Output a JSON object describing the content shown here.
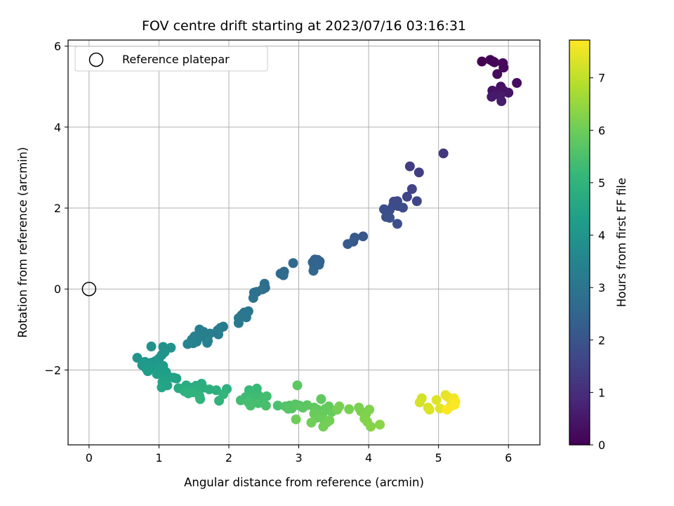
{
  "chart_data": {
    "type": "scatter",
    "title": "FOV centre drift starting at 2023/07/16 03:16:31",
    "xlabel": "Angular distance from reference (arcmin)",
    "ylabel": "Rotation from reference (arcmin)",
    "xlim": [
      -0.3,
      6.45
    ],
    "ylim": [
      -3.85,
      6.15
    ],
    "xticks": [
      0,
      1,
      2,
      3,
      4,
      5,
      6
    ],
    "xtick_labels": [
      "0",
      "1",
      "2",
      "3",
      "4",
      "5",
      "6"
    ],
    "yticks": [
      -2,
      0,
      2,
      4,
      6
    ],
    "ytick_labels": [
      "−2",
      "0",
      "2",
      "4",
      "6"
    ],
    "grid": true,
    "legend": {
      "location": "top-left",
      "entries": [
        "Reference platepar"
      ]
    },
    "reference_point": {
      "name": "Reference platepar",
      "x": 0,
      "y": 0
    },
    "colorbar": {
      "label": "Hours from first FF file",
      "colormap": "viridis",
      "range": [
        0,
        7.72
      ],
      "ticks": [
        0,
        1,
        2,
        3,
        4,
        5,
        6,
        7
      ],
      "tick_labels": [
        "0",
        "1",
        "2",
        "3",
        "4",
        "5",
        "6",
        "7"
      ]
    },
    "points": [
      {
        "x": 5.62,
        "y": 5.62,
        "h": 0.0
      },
      {
        "x": 5.74,
        "y": 5.66,
        "h": 0.04
      },
      {
        "x": 5.78,
        "y": 5.62,
        "h": 0.08
      },
      {
        "x": 5.8,
        "y": 5.6,
        "h": 0.12
      },
      {
        "x": 5.92,
        "y": 5.58,
        "h": 0.16
      },
      {
        "x": 5.93,
        "y": 5.47,
        "h": 0.2
      },
      {
        "x": 5.84,
        "y": 5.31,
        "h": 0.24
      },
      {
        "x": 6.12,
        "y": 5.09,
        "h": 0.28
      },
      {
        "x": 5.89,
        "y": 5.0,
        "h": 0.32
      },
      {
        "x": 5.77,
        "y": 4.9,
        "h": 0.36
      },
      {
        "x": 5.93,
        "y": 4.9,
        "h": 0.4
      },
      {
        "x": 6.0,
        "y": 4.85,
        "h": 0.44
      },
      {
        "x": 5.82,
        "y": 4.82,
        "h": 0.48
      },
      {
        "x": 5.76,
        "y": 4.75,
        "h": 0.52
      },
      {
        "x": 5.88,
        "y": 4.77,
        "h": 0.56
      },
      {
        "x": 5.9,
        "y": 4.64,
        "h": 0.6
      },
      {
        "x": 5.07,
        "y": 3.35,
        "h": 1.2
      },
      {
        "x": 4.59,
        "y": 3.03,
        "h": 1.35
      },
      {
        "x": 4.72,
        "y": 2.88,
        "h": 1.45
      },
      {
        "x": 4.62,
        "y": 2.47,
        "h": 1.55
      },
      {
        "x": 4.55,
        "y": 2.28,
        "h": 1.6
      },
      {
        "x": 4.69,
        "y": 2.17,
        "h": 1.65
      },
      {
        "x": 4.36,
        "y": 2.16,
        "h": 1.7
      },
      {
        "x": 4.41,
        "y": 2.17,
        "h": 1.72
      },
      {
        "x": 4.35,
        "y": 2.06,
        "h": 1.75
      },
      {
        "x": 4.42,
        "y": 2.05,
        "h": 1.78
      },
      {
        "x": 4.49,
        "y": 2.01,
        "h": 1.8
      },
      {
        "x": 4.22,
        "y": 1.97,
        "h": 1.82
      },
      {
        "x": 4.3,
        "y": 1.95,
        "h": 1.84
      },
      {
        "x": 4.25,
        "y": 1.78,
        "h": 1.86
      },
      {
        "x": 4.3,
        "y": 1.76,
        "h": 1.88
      },
      {
        "x": 4.41,
        "y": 1.61,
        "h": 1.9
      },
      {
        "x": 3.92,
        "y": 1.3,
        "h": 2.05
      },
      {
        "x": 3.8,
        "y": 1.27,
        "h": 2.1
      },
      {
        "x": 3.78,
        "y": 1.17,
        "h": 2.15
      },
      {
        "x": 3.7,
        "y": 1.11,
        "h": 2.2
      },
      {
        "x": 3.23,
        "y": 0.73,
        "h": 2.4
      },
      {
        "x": 3.27,
        "y": 0.72,
        "h": 2.42
      },
      {
        "x": 3.3,
        "y": 0.68,
        "h": 2.44
      },
      {
        "x": 3.2,
        "y": 0.66,
        "h": 2.46
      },
      {
        "x": 3.25,
        "y": 0.63,
        "h": 2.48
      },
      {
        "x": 3.29,
        "y": 0.6,
        "h": 2.5
      },
      {
        "x": 3.22,
        "y": 0.53,
        "h": 2.52
      },
      {
        "x": 3.21,
        "y": 0.45,
        "h": 2.54
      },
      {
        "x": 2.92,
        "y": 0.64,
        "h": 2.6
      },
      {
        "x": 2.79,
        "y": 0.43,
        "h": 2.65
      },
      {
        "x": 2.74,
        "y": 0.38,
        "h": 2.68
      },
      {
        "x": 2.78,
        "y": 0.34,
        "h": 2.7
      },
      {
        "x": 2.51,
        "y": 0.13,
        "h": 2.8
      },
      {
        "x": 2.52,
        "y": 0.03,
        "h": 2.82
      },
      {
        "x": 2.48,
        "y": -0.01,
        "h": 2.84
      },
      {
        "x": 2.4,
        "y": -0.07,
        "h": 2.86
      },
      {
        "x": 2.36,
        "y": -0.09,
        "h": 2.88
      },
      {
        "x": 2.35,
        "y": -0.22,
        "h": 2.9
      },
      {
        "x": 2.28,
        "y": -0.55,
        "h": 3.0
      },
      {
        "x": 2.22,
        "y": -0.58,
        "h": 3.02
      },
      {
        "x": 2.18,
        "y": -0.65,
        "h": 3.04
      },
      {
        "x": 2.25,
        "y": -0.7,
        "h": 3.06
      },
      {
        "x": 2.14,
        "y": -0.72,
        "h": 3.08
      },
      {
        "x": 2.14,
        "y": -0.84,
        "h": 3.1
      },
      {
        "x": 1.92,
        "y": -0.93,
        "h": 3.2
      },
      {
        "x": 1.88,
        "y": -0.96,
        "h": 3.22
      },
      {
        "x": 1.84,
        "y": -1.02,
        "h": 3.24
      },
      {
        "x": 1.85,
        "y": -1.12,
        "h": 3.26
      },
      {
        "x": 1.73,
        "y": -1.1,
        "h": 3.28
      },
      {
        "x": 1.64,
        "y": -1.06,
        "h": 3.3
      },
      {
        "x": 1.58,
        "y": -1.0,
        "h": 3.32
      },
      {
        "x": 1.63,
        "y": -1.18,
        "h": 3.34
      },
      {
        "x": 1.51,
        "y": -1.17,
        "h": 3.36
      },
      {
        "x": 1.47,
        "y": -1.25,
        "h": 3.38
      },
      {
        "x": 1.54,
        "y": -1.3,
        "h": 3.4
      },
      {
        "x": 1.7,
        "y": -1.28,
        "h": 3.42
      },
      {
        "x": 1.69,
        "y": -1.33,
        "h": 3.44
      },
      {
        "x": 1.49,
        "y": -1.34,
        "h": 3.46
      },
      {
        "x": 1.41,
        "y": -1.36,
        "h": 3.48
      },
      {
        "x": 1.06,
        "y": -1.43,
        "h": 3.9
      },
      {
        "x": 1.17,
        "y": -1.45,
        "h": 3.92
      },
      {
        "x": 0.89,
        "y": -1.42,
        "h": 3.94
      },
      {
        "x": 1.08,
        "y": -1.56,
        "h": 3.96
      },
      {
        "x": 1.04,
        "y": -1.63,
        "h": 3.98
      },
      {
        "x": 0.69,
        "y": -1.7,
        "h": 4.0
      },
      {
        "x": 1.0,
        "y": -1.72,
        "h": 4.02
      },
      {
        "x": 0.95,
        "y": -1.78,
        "h": 4.05
      },
      {
        "x": 0.89,
        "y": -1.82,
        "h": 4.08
      },
      {
        "x": 0.8,
        "y": -1.8,
        "h": 4.1
      },
      {
        "x": 0.85,
        "y": -1.86,
        "h": 4.12
      },
      {
        "x": 0.76,
        "y": -1.88,
        "h": 4.15
      },
      {
        "x": 0.91,
        "y": -1.92,
        "h": 4.18
      },
      {
        "x": 0.81,
        "y": -1.95,
        "h": 4.2
      },
      {
        "x": 1.06,
        "y": -1.9,
        "h": 4.22
      },
      {
        "x": 0.99,
        "y": -1.95,
        "h": 4.25
      },
      {
        "x": 1.03,
        "y": -2.0,
        "h": 4.28
      },
      {
        "x": 0.84,
        "y": -2.03,
        "h": 4.3
      },
      {
        "x": 1.1,
        "y": -2.05,
        "h": 4.32
      },
      {
        "x": 0.97,
        "y": -2.1,
        "h": 4.35
      },
      {
        "x": 1.14,
        "y": -2.17,
        "h": 4.38
      },
      {
        "x": 1.07,
        "y": -2.22,
        "h": 4.4
      },
      {
        "x": 1.21,
        "y": -2.19,
        "h": 4.42
      },
      {
        "x": 1.25,
        "y": -2.21,
        "h": 4.44
      },
      {
        "x": 1.05,
        "y": -2.3,
        "h": 4.46
      },
      {
        "x": 1.06,
        "y": -2.37,
        "h": 4.48
      },
      {
        "x": 1.12,
        "y": -2.38,
        "h": 4.5
      },
      {
        "x": 1.04,
        "y": -2.43,
        "h": 4.52
      },
      {
        "x": 1.28,
        "y": -2.45,
        "h": 4.7
      },
      {
        "x": 1.39,
        "y": -2.38,
        "h": 4.72
      },
      {
        "x": 1.34,
        "y": -2.48,
        "h": 4.74
      },
      {
        "x": 1.46,
        "y": -2.44,
        "h": 4.76
      },
      {
        "x": 1.53,
        "y": -2.39,
        "h": 4.78
      },
      {
        "x": 1.61,
        "y": -2.34,
        "h": 4.8
      },
      {
        "x": 1.63,
        "y": -2.44,
        "h": 4.82
      },
      {
        "x": 1.57,
        "y": -2.48,
        "h": 4.84
      },
      {
        "x": 1.72,
        "y": -2.48,
        "h": 4.86
      },
      {
        "x": 1.82,
        "y": -2.5,
        "h": 4.88
      },
      {
        "x": 1.97,
        "y": -2.47,
        "h": 4.9
      },
      {
        "x": 1.37,
        "y": -2.53,
        "h": 4.92
      },
      {
        "x": 1.42,
        "y": -2.58,
        "h": 4.94
      },
      {
        "x": 1.48,
        "y": -2.55,
        "h": 4.96
      },
      {
        "x": 1.58,
        "y": -2.65,
        "h": 4.98
      },
      {
        "x": 1.59,
        "y": -2.72,
        "h": 5.0
      },
      {
        "x": 1.86,
        "y": -2.76,
        "h": 5.02
      },
      {
        "x": 1.92,
        "y": -2.6,
        "h": 5.04
      },
      {
        "x": 2.29,
        "y": -2.5,
        "h": 5.2
      },
      {
        "x": 2.4,
        "y": -2.46,
        "h": 5.22
      },
      {
        "x": 2.31,
        "y": -2.58,
        "h": 5.24
      },
      {
        "x": 2.42,
        "y": -2.62,
        "h": 5.26
      },
      {
        "x": 2.24,
        "y": -2.67,
        "h": 5.28
      },
      {
        "x": 2.33,
        "y": -2.68,
        "h": 5.3
      },
      {
        "x": 2.35,
        "y": -2.73,
        "h": 5.32
      },
      {
        "x": 2.17,
        "y": -2.75,
        "h": 5.34
      },
      {
        "x": 2.47,
        "y": -2.7,
        "h": 5.36
      },
      {
        "x": 2.54,
        "y": -2.65,
        "h": 5.38
      },
      {
        "x": 2.28,
        "y": -2.8,
        "h": 5.4
      },
      {
        "x": 2.42,
        "y": -2.82,
        "h": 5.42
      },
      {
        "x": 2.31,
        "y": -2.88,
        "h": 5.44
      },
      {
        "x": 2.53,
        "y": -2.88,
        "h": 5.46
      },
      {
        "x": 2.7,
        "y": -2.88,
        "h": 5.48
      },
      {
        "x": 2.81,
        "y": -2.9,
        "h": 5.6
      },
      {
        "x": 2.87,
        "y": -2.88,
        "h": 5.62
      },
      {
        "x": 2.9,
        "y": -2.95,
        "h": 5.64
      },
      {
        "x": 2.85,
        "y": -2.96,
        "h": 5.66
      },
      {
        "x": 2.95,
        "y": -2.85,
        "h": 5.68
      },
      {
        "x": 3.01,
        "y": -2.88,
        "h": 5.7
      },
      {
        "x": 3.06,
        "y": -2.93,
        "h": 5.72
      },
      {
        "x": 3.12,
        "y": -2.87,
        "h": 5.74
      },
      {
        "x": 2.98,
        "y": -2.38,
        "h": 5.76
      },
      {
        "x": 3.22,
        "y": -2.93,
        "h": 5.78
      },
      {
        "x": 3.32,
        "y": -2.72,
        "h": 5.8
      },
      {
        "x": 3.27,
        "y": -2.98,
        "h": 5.82
      },
      {
        "x": 3.3,
        "y": -3.02,
        "h": 5.84
      },
      {
        "x": 3.38,
        "y": -2.96,
        "h": 5.86
      },
      {
        "x": 3.43,
        "y": -2.9,
        "h": 5.88
      },
      {
        "x": 3.47,
        "y": -3.04,
        "h": 5.9
      },
      {
        "x": 3.34,
        "y": -3.1,
        "h": 5.92
      },
      {
        "x": 3.22,
        "y": -3.08,
        "h": 5.94
      },
      {
        "x": 3.26,
        "y": -3.18,
        "h": 5.96
      },
      {
        "x": 3.36,
        "y": -3.23,
        "h": 5.98
      },
      {
        "x": 3.4,
        "y": -3.3,
        "h": 6.0
      },
      {
        "x": 2.96,
        "y": -3.22,
        "h": 6.02
      },
      {
        "x": 3.18,
        "y": -3.3,
        "h": 6.04
      },
      {
        "x": 3.35,
        "y": -3.4,
        "h": 6.06
      },
      {
        "x": 3.44,
        "y": -3.25,
        "h": 6.08
      },
      {
        "x": 3.55,
        "y": -2.98,
        "h": 6.1
      },
      {
        "x": 3.58,
        "y": -2.9,
        "h": 6.12
      },
      {
        "x": 3.72,
        "y": -2.97,
        "h": 6.14
      },
      {
        "x": 3.86,
        "y": -2.93,
        "h": 6.16
      },
      {
        "x": 3.89,
        "y": -3.02,
        "h": 6.18
      },
      {
        "x": 3.96,
        "y": -3.1,
        "h": 6.2
      },
      {
        "x": 4.01,
        "y": -2.98,
        "h": 6.22
      },
      {
        "x": 3.94,
        "y": -3.2,
        "h": 6.24
      },
      {
        "x": 3.98,
        "y": -3.28,
        "h": 6.26
      },
      {
        "x": 4.03,
        "y": -3.4,
        "h": 6.3
      },
      {
        "x": 4.16,
        "y": -3.35,
        "h": 6.35
      },
      {
        "x": 4.76,
        "y": -2.7,
        "h": 7.2
      },
      {
        "x": 4.73,
        "y": -2.8,
        "h": 7.24
      },
      {
        "x": 4.85,
        "y": -2.93,
        "h": 7.28
      },
      {
        "x": 4.87,
        "y": -2.98,
        "h": 7.32
      },
      {
        "x": 4.97,
        "y": -2.74,
        "h": 7.36
      },
      {
        "x": 5.02,
        "y": -2.95,
        "h": 7.4
      },
      {
        "x": 5.1,
        "y": -2.62,
        "h": 7.44
      },
      {
        "x": 5.14,
        "y": -2.68,
        "h": 7.48
      },
      {
        "x": 5.17,
        "y": -2.9,
        "h": 7.52
      },
      {
        "x": 5.2,
        "y": -2.76,
        "h": 7.56
      },
      {
        "x": 5.22,
        "y": -2.7,
        "h": 7.6
      },
      {
        "x": 5.24,
        "y": -2.78,
        "h": 7.64
      },
      {
        "x": 5.23,
        "y": -2.86,
        "h": 7.68
      },
      {
        "x": 5.12,
        "y": -2.98,
        "h": 7.72
      }
    ]
  }
}
